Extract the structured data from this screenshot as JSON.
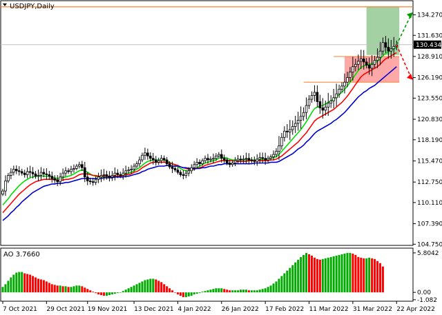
{
  "chart_data": {
    "type": "candlestick",
    "title": "USDJPY,Daily",
    "y_ticks": [
      "134.270",
      "131.630",
      "128.910",
      "126.190",
      "123.550",
      "120.830",
      "118.190",
      "115.470",
      "112.750",
      "110.110",
      "107.390",
      "104.750"
    ],
    "y_tick_values": [
      134.27,
      131.63,
      128.91,
      126.19,
      123.55,
      120.83,
      118.19,
      115.47,
      112.75,
      110.11,
      107.39,
      104.75
    ],
    "ylim": [
      104.6,
      136.0
    ],
    "x_tick_labels": [
      "7 Oct 2021",
      "29 Oct 2021",
      "19 Nov 2021",
      "13 Dec 2021",
      "4 Jan 2022",
      "26 Jan 2022",
      "17 Feb 2022",
      "11 Mar 2022",
      "31 Mar 2022",
      "22 Apr 2022"
    ],
    "x_tick_index": [
      0,
      16,
      31,
      48,
      64,
      80,
      96,
      112,
      128,
      144
    ],
    "current_price": "130.434",
    "current_price_value": 130.434,
    "close": [
      111.6,
      112.9,
      113.6,
      114.0,
      114.4,
      114.2,
      114.1,
      113.9,
      113.7,
      114.1,
      114.0,
      113.8,
      113.5,
      113.6,
      114.0,
      113.8,
      113.7,
      113.5,
      113.2,
      113.0,
      112.8,
      113.4,
      113.9,
      114.2,
      114.1,
      114.4,
      114.5,
      114.8,
      115.0,
      114.6,
      113.4,
      112.9,
      112.8,
      112.7,
      113.1,
      113.4,
      113.6,
      113.7,
      113.5,
      113.4,
      113.6,
      113.9,
      113.7,
      113.6,
      113.9,
      114.2,
      114.3,
      114.4,
      114.8,
      115.1,
      115.6,
      116.2,
      116.5,
      116.1,
      115.8,
      115.6,
      115.3,
      115.5,
      115.8,
      115.6,
      115.1,
      114.7,
      114.5,
      114.3,
      114.0,
      113.7,
      113.6,
      113.9,
      114.2,
      114.6,
      115.0,
      115.3,
      115.1,
      115.5,
      115.8,
      115.6,
      115.7,
      115.8,
      116.1,
      116.3,
      115.8,
      115.6,
      115.2,
      115.0,
      115.2,
      115.5,
      115.7,
      115.6,
      115.7,
      115.8,
      115.6,
      115.5,
      115.4,
      115.7,
      115.9,
      115.8,
      115.6,
      115.8,
      116.0,
      116.3,
      116.7,
      117.4,
      118.5,
      119.3,
      119.2,
      119.5,
      119.9,
      120.3,
      120.7,
      121.2,
      121.7,
      122.6,
      123.4,
      123.9,
      124.3,
      123.1,
      122.3,
      122.0,
      122.4,
      122.9,
      123.2,
      123.6,
      124.1,
      124.7,
      125.1,
      125.6,
      126.2,
      126.9,
      127.6,
      127.9,
      128.3,
      128.6,
      128.2,
      127.8,
      127.4,
      127.9,
      128.4,
      128.8,
      129.6,
      130.7,
      130.1,
      129.6,
      129.9,
      130.2,
      130.4
    ]
  },
  "ao_panel": {
    "label": "AO 3.7660",
    "y_ticks": [
      "5.8042",
      "0.00",
      "-1.082"
    ],
    "y_tick_values": [
      5.8042,
      0.0,
      -1.082
    ],
    "ylim": [
      -1.3,
      6.4
    ],
    "up_color": "#00aa00",
    "down_color": "#ff0000",
    "values": [
      0.8,
      1.2,
      1.7,
      2.2,
      2.6,
      2.9,
      3.0,
      3.0,
      2.8,
      2.7,
      2.6,
      2.4,
      2.2,
      2.0,
      1.9,
      1.8,
      1.6,
      1.4,
      1.2,
      1.1,
      1.0,
      1.0,
      0.9,
      0.9,
      0.8,
      0.8,
      0.9,
      1.0,
      1.0,
      0.9,
      0.7,
      0.5,
      0.3,
      0.1,
      -0.1,
      -0.3,
      -0.4,
      -0.5,
      -0.5,
      -0.4,
      -0.3,
      -0.2,
      -0.1,
      0.0,
      0.2,
      0.4,
      0.6,
      0.8,
      1.0,
      1.2,
      1.4,
      1.6,
      1.8,
      1.9,
      2.0,
      2.0,
      1.9,
      1.7,
      1.5,
      1.2,
      0.9,
      0.6,
      0.3,
      0.0,
      -0.3,
      -0.5,
      -0.7,
      -0.7,
      -0.6,
      -0.5,
      -0.3,
      -0.2,
      -0.1,
      0.1,
      0.2,
      0.3,
      0.4,
      0.5,
      0.6,
      0.6,
      0.6,
      0.5,
      0.4,
      0.3,
      0.3,
      0.3,
      0.3,
      0.4,
      0.4,
      0.4,
      0.3,
      0.3,
      0.3,
      0.3,
      0.4,
      0.5,
      0.6,
      0.8,
      1.0,
      1.3,
      1.6,
      2.0,
      2.4,
      2.8,
      3.2,
      3.6,
      4.0,
      4.4,
      4.8,
      5.2,
      5.5,
      5.8,
      5.6,
      5.4,
      5.1,
      4.9,
      4.8,
      4.9,
      5.0,
      5.1,
      5.2,
      5.3,
      5.4,
      5.5,
      5.6,
      5.7,
      5.8,
      5.8,
      5.7,
      5.5,
      5.2,
      5.1,
      5.0,
      5.0,
      5.1,
      5.0,
      4.9,
      4.6,
      4.3,
      3.8
    ]
  },
  "moving_averages": [
    {
      "color": "#00dd00",
      "values": [
        109.8,
        110.2,
        110.6,
        111.1,
        111.5,
        111.9,
        112.3,
        112.6,
        112.9,
        113.1,
        113.3,
        113.4,
        113.5,
        113.5,
        113.5,
        113.5,
        113.5,
        113.5,
        113.4,
        113.3,
        113.2,
        113.2,
        113.3,
        113.4,
        113.5,
        113.6,
        113.8,
        114.0,
        114.2,
        114.3,
        114.2,
        114.0,
        113.8,
        113.6,
        113.5,
        113.4,
        113.4,
        113.4,
        113.4,
        113.4,
        113.4,
        113.5,
        113.5,
        113.6,
        113.7,
        113.8,
        113.9,
        114.0,
        114.2,
        114.4,
        114.6,
        114.9,
        115.2,
        115.4,
        115.5,
        115.6,
        115.6,
        115.6,
        115.6,
        115.6,
        115.5,
        115.3,
        115.1,
        114.9,
        114.7,
        114.5,
        114.3,
        114.2,
        114.2,
        114.3,
        114.4,
        114.6,
        114.8,
        115.0,
        115.2,
        115.3,
        115.4,
        115.5,
        115.6,
        115.8,
        115.9,
        115.9,
        115.8,
        115.7,
        115.6,
        115.6,
        115.6,
        115.6,
        115.6,
        115.6,
        115.6,
        115.6,
        115.6,
        115.6,
        115.6,
        115.7,
        115.7,
        115.7,
        115.8,
        115.9,
        116.0,
        116.3,
        116.7,
        117.1,
        117.5,
        117.9,
        118.3,
        118.7,
        119.1,
        119.5,
        120.0,
        120.5,
        121.1,
        121.7,
        122.2,
        122.4,
        122.5,
        122.6,
        122.8,
        123.0,
        123.2,
        123.4,
        123.7,
        124.0,
        124.3,
        124.7,
        125.1,
        125.6,
        126.1,
        126.6,
        127.1,
        127.5,
        127.7,
        127.8,
        127.9,
        128.0,
        128.1,
        128.3,
        128.6,
        129.0,
        129.3,
        129.5,
        129.7,
        129.9,
        130.1
      ]
    },
    {
      "color": "#ff0000",
      "values": [
        108.8,
        109.2,
        109.6,
        110.0,
        110.4,
        110.8,
        111.2,
        111.5,
        111.8,
        112.1,
        112.4,
        112.6,
        112.8,
        112.9,
        113.0,
        113.1,
        113.1,
        113.1,
        113.1,
        113.1,
        113.0,
        113.0,
        113.0,
        113.1,
        113.1,
        113.2,
        113.3,
        113.5,
        113.7,
        113.8,
        113.8,
        113.8,
        113.7,
        113.6,
        113.6,
        113.5,
        113.5,
        113.5,
        113.5,
        113.5,
        113.5,
        113.5,
        113.5,
        113.5,
        113.6,
        113.7,
        113.7,
        113.8,
        114.0,
        114.1,
        114.3,
        114.6,
        114.8,
        115.0,
        115.2,
        115.3,
        115.3,
        115.3,
        115.3,
        115.3,
        115.3,
        115.2,
        115.1,
        115.0,
        114.9,
        114.7,
        114.6,
        114.5,
        114.4,
        114.4,
        114.4,
        114.5,
        114.6,
        114.7,
        114.9,
        115.0,
        115.1,
        115.2,
        115.3,
        115.4,
        115.5,
        115.5,
        115.5,
        115.5,
        115.5,
        115.4,
        115.4,
        115.4,
        115.4,
        115.4,
        115.5,
        115.5,
        115.5,
        115.5,
        115.5,
        115.5,
        115.5,
        115.5,
        115.6,
        115.6,
        115.7,
        115.9,
        116.1,
        116.4,
        116.7,
        117.0,
        117.3,
        117.6,
        117.9,
        118.3,
        118.7,
        119.1,
        119.6,
        120.1,
        120.6,
        120.9,
        121.1,
        121.3,
        121.5,
        121.7,
        121.9,
        122.1,
        122.4,
        122.7,
        123.0,
        123.4,
        123.8,
        124.3,
        124.8,
        125.3,
        125.8,
        126.3,
        126.6,
        126.8,
        127.0,
        127.2,
        127.4,
        127.6,
        127.9,
        128.3,
        128.6,
        128.8,
        129.0,
        129.2,
        129.4
      ]
    },
    {
      "color": "#0000cc",
      "values": [
        107.8,
        108.1,
        108.4,
        108.8,
        109.1,
        109.5,
        109.8,
        110.2,
        110.5,
        110.8,
        111.1,
        111.4,
        111.6,
        111.8,
        112.0,
        112.2,
        112.3,
        112.4,
        112.5,
        112.5,
        112.6,
        112.6,
        112.6,
        112.7,
        112.7,
        112.8,
        112.9,
        113.0,
        113.1,
        113.2,
        113.2,
        113.2,
        113.2,
        113.2,
        113.2,
        113.2,
        113.2,
        113.3,
        113.3,
        113.3,
        113.3,
        113.4,
        113.4,
        113.4,
        113.4,
        113.5,
        113.5,
        113.6,
        113.7,
        113.8,
        113.9,
        114.1,
        114.2,
        114.4,
        114.5,
        114.6,
        114.7,
        114.8,
        114.8,
        114.8,
        114.9,
        114.9,
        114.8,
        114.8,
        114.8,
        114.7,
        114.6,
        114.6,
        114.5,
        114.5,
        114.5,
        114.5,
        114.5,
        114.6,
        114.6,
        114.7,
        114.8,
        114.8,
        114.9,
        115.0,
        115.0,
        115.1,
        115.1,
        115.1,
        115.1,
        115.1,
        115.1,
        115.1,
        115.1,
        115.1,
        115.1,
        115.1,
        115.2,
        115.2,
        115.2,
        115.2,
        115.2,
        115.2,
        115.3,
        115.3,
        115.3,
        115.4,
        115.6,
        115.8,
        116.0,
        116.2,
        116.4,
        116.7,
        117.0,
        117.2,
        117.5,
        117.9,
        118.2,
        118.6,
        119.0,
        119.3,
        119.5,
        119.7,
        119.9,
        120.1,
        120.3,
        120.6,
        120.8,
        121.1,
        121.4,
        121.7,
        122.1,
        122.5,
        122.9,
        123.3,
        123.7,
        124.0,
        124.3,
        124.5,
        124.8,
        125.0,
        125.2,
        125.5,
        125.8,
        126.1,
        126.4,
        126.7,
        127.0,
        127.3,
        127.6
      ]
    }
  ],
  "levels": {
    "top_line": 135.3,
    "current": 130.434,
    "mid": 128.9,
    "low": 125.6,
    "top_line_color": "#ff7f27",
    "current_line_color": "#c0c0c0"
  },
  "zones": {
    "green": {
      "from_index": 133,
      "to_index": 145,
      "low": 129.1,
      "high": 135.3,
      "color": "#99cc99"
    },
    "red": {
      "from_index": 125,
      "to_index": 145,
      "low": 125.6,
      "high": 128.9,
      "color": "#ff9999"
    },
    "green_arrow_color": "#009900",
    "red_arrow_color": "#ff0000"
  }
}
